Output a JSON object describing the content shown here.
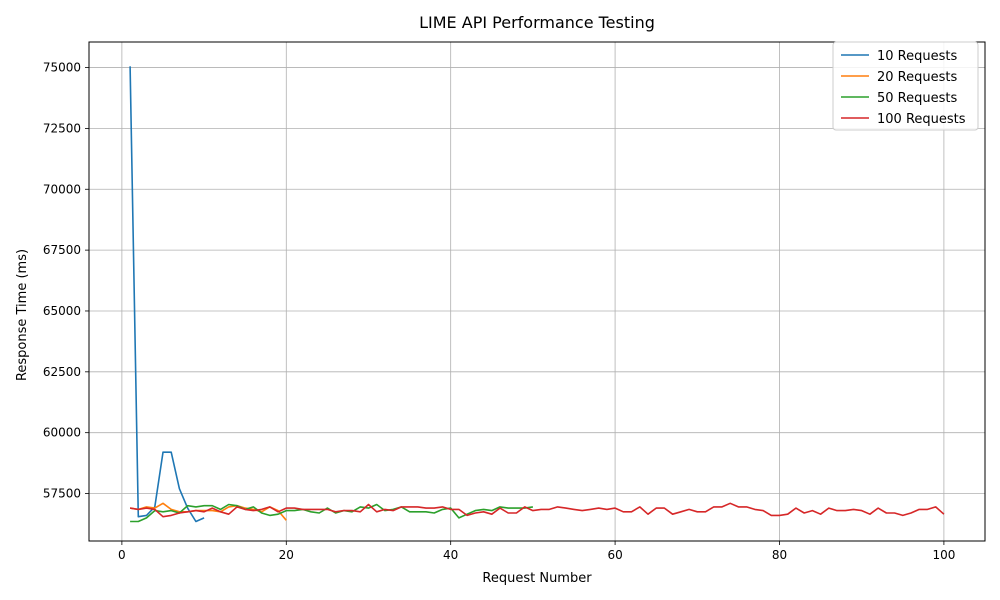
{
  "chart_data": {
    "type": "line",
    "title": "LIME API Performance Testing",
    "xlabel": "Request Number",
    "ylabel": "Response Time (ms)",
    "xlim": [
      -4,
      105
    ],
    "ylim": [
      55550,
      76050
    ],
    "xticks": [
      0,
      20,
      40,
      60,
      80,
      100
    ],
    "xtick_labels": [
      "0",
      "20",
      "40",
      "60",
      "80",
      "100"
    ],
    "yticks": [
      57500,
      60000,
      62500,
      65000,
      67500,
      70000,
      72500,
      75000
    ],
    "ytick_labels": [
      "57500",
      "60000",
      "62500",
      "65000",
      "67500",
      "70000",
      "72500",
      "75000"
    ],
    "grid": true,
    "legend_position": "top-right",
    "series": [
      {
        "name": "10 Requests",
        "color": "#1f77b4",
        "x": [
          1,
          2,
          3,
          4,
          5,
          6,
          7,
          8,
          9,
          10
        ],
        "y": [
          75050,
          56550,
          56600,
          56950,
          59200,
          59200,
          57700,
          56900,
          56350,
          56500
        ]
      },
      {
        "name": "20 Requests",
        "color": "#ff7f0e",
        "x": [
          1,
          2,
          3,
          4,
          5,
          6,
          7,
          8,
          9,
          10,
          11,
          12,
          13,
          14,
          15,
          16,
          17,
          18,
          19,
          20
        ],
        "y": [
          56900,
          56850,
          56950,
          56900,
          57100,
          56850,
          56750,
          56750,
          56800,
          56800,
          56800,
          56750,
          56950,
          57000,
          56900,
          56850,
          56750,
          56950,
          56800,
          56400
        ]
      },
      {
        "name": "50 Requests",
        "color": "#2ca02c",
        "x": [
          1,
          2,
          3,
          4,
          5,
          6,
          7,
          8,
          9,
          10,
          11,
          12,
          13,
          14,
          15,
          16,
          17,
          18,
          19,
          20,
          21,
          22,
          23,
          24,
          25,
          26,
          27,
          28,
          29,
          30,
          31,
          32,
          33,
          34,
          35,
          36,
          37,
          38,
          39,
          40,
          41,
          42,
          43,
          44,
          45,
          46,
          47,
          48,
          49,
          50
        ],
        "y": [
          56350,
          56350,
          56500,
          56800,
          56750,
          56800,
          56700,
          57000,
          56950,
          57000,
          57000,
          56850,
          57050,
          57000,
          56850,
          56950,
          56700,
          56600,
          56650,
          56800,
          56800,
          56850,
          56750,
          56700,
          56900,
          56700,
          56800,
          56750,
          56950,
          56900,
          57050,
          56800,
          56850,
          56950,
          56750,
          56750,
          56750,
          56700,
          56850,
          56900,
          56500,
          56650,
          56800,
          56850,
          56800,
          56950,
          56900,
          56900,
          56900,
          56950
        ]
      },
      {
        "name": "100 Requests",
        "color": "#d62728",
        "x": [
          1,
          2,
          3,
          4,
          5,
          6,
          7,
          8,
          9,
          10,
          11,
          12,
          13,
          14,
          15,
          16,
          17,
          18,
          19,
          20,
          21,
          22,
          23,
          24,
          25,
          26,
          27,
          28,
          29,
          30,
          31,
          32,
          33,
          34,
          35,
          36,
          37,
          38,
          39,
          40,
          41,
          42,
          43,
          44,
          45,
          46,
          47,
          48,
          49,
          50,
          51,
          52,
          53,
          54,
          55,
          56,
          57,
          58,
          59,
          60,
          61,
          62,
          63,
          64,
          65,
          66,
          67,
          68,
          69,
          70,
          71,
          72,
          73,
          74,
          75,
          76,
          77,
          78,
          79,
          80,
          81,
          82,
          83,
          84,
          85,
          86,
          87,
          88,
          89,
          90,
          91,
          92,
          93,
          94,
          95,
          96,
          97,
          98,
          99,
          100
        ],
        "y": [
          56900,
          56850,
          56900,
          56850,
          56550,
          56600,
          56700,
          56750,
          56800,
          56750,
          56900,
          56750,
          56650,
          56950,
          56850,
          56800,
          56850,
          56950,
          56750,
          56900,
          56900,
          56850,
          56850,
          56850,
          56850,
          56750,
          56800,
          56800,
          56750,
          57050,
          56750,
          56850,
          56800,
          56950,
          56950,
          56950,
          56900,
          56900,
          56950,
          56850,
          56850,
          56600,
          56700,
          56750,
          56650,
          56900,
          56700,
          56700,
          56950,
          56800,
          56850,
          56850,
          56950,
          56900,
          56850,
          56800,
          56850,
          56900,
          56850,
          56900,
          56750,
          56750,
          56950,
          56650,
          56900,
          56900,
          56650,
          56750,
          56850,
          56750,
          56750,
          56950,
          56950,
          57100,
          56950,
          56950,
          56850,
          56800,
          56600,
          56600,
          56650,
          56900,
          56700,
          56800,
          56650,
          56900,
          56800,
          56800,
          56850,
          56800,
          56650,
          56900,
          56700,
          56700,
          56600,
          56700,
          56850,
          56850,
          56950,
          56650
        ]
      }
    ]
  }
}
